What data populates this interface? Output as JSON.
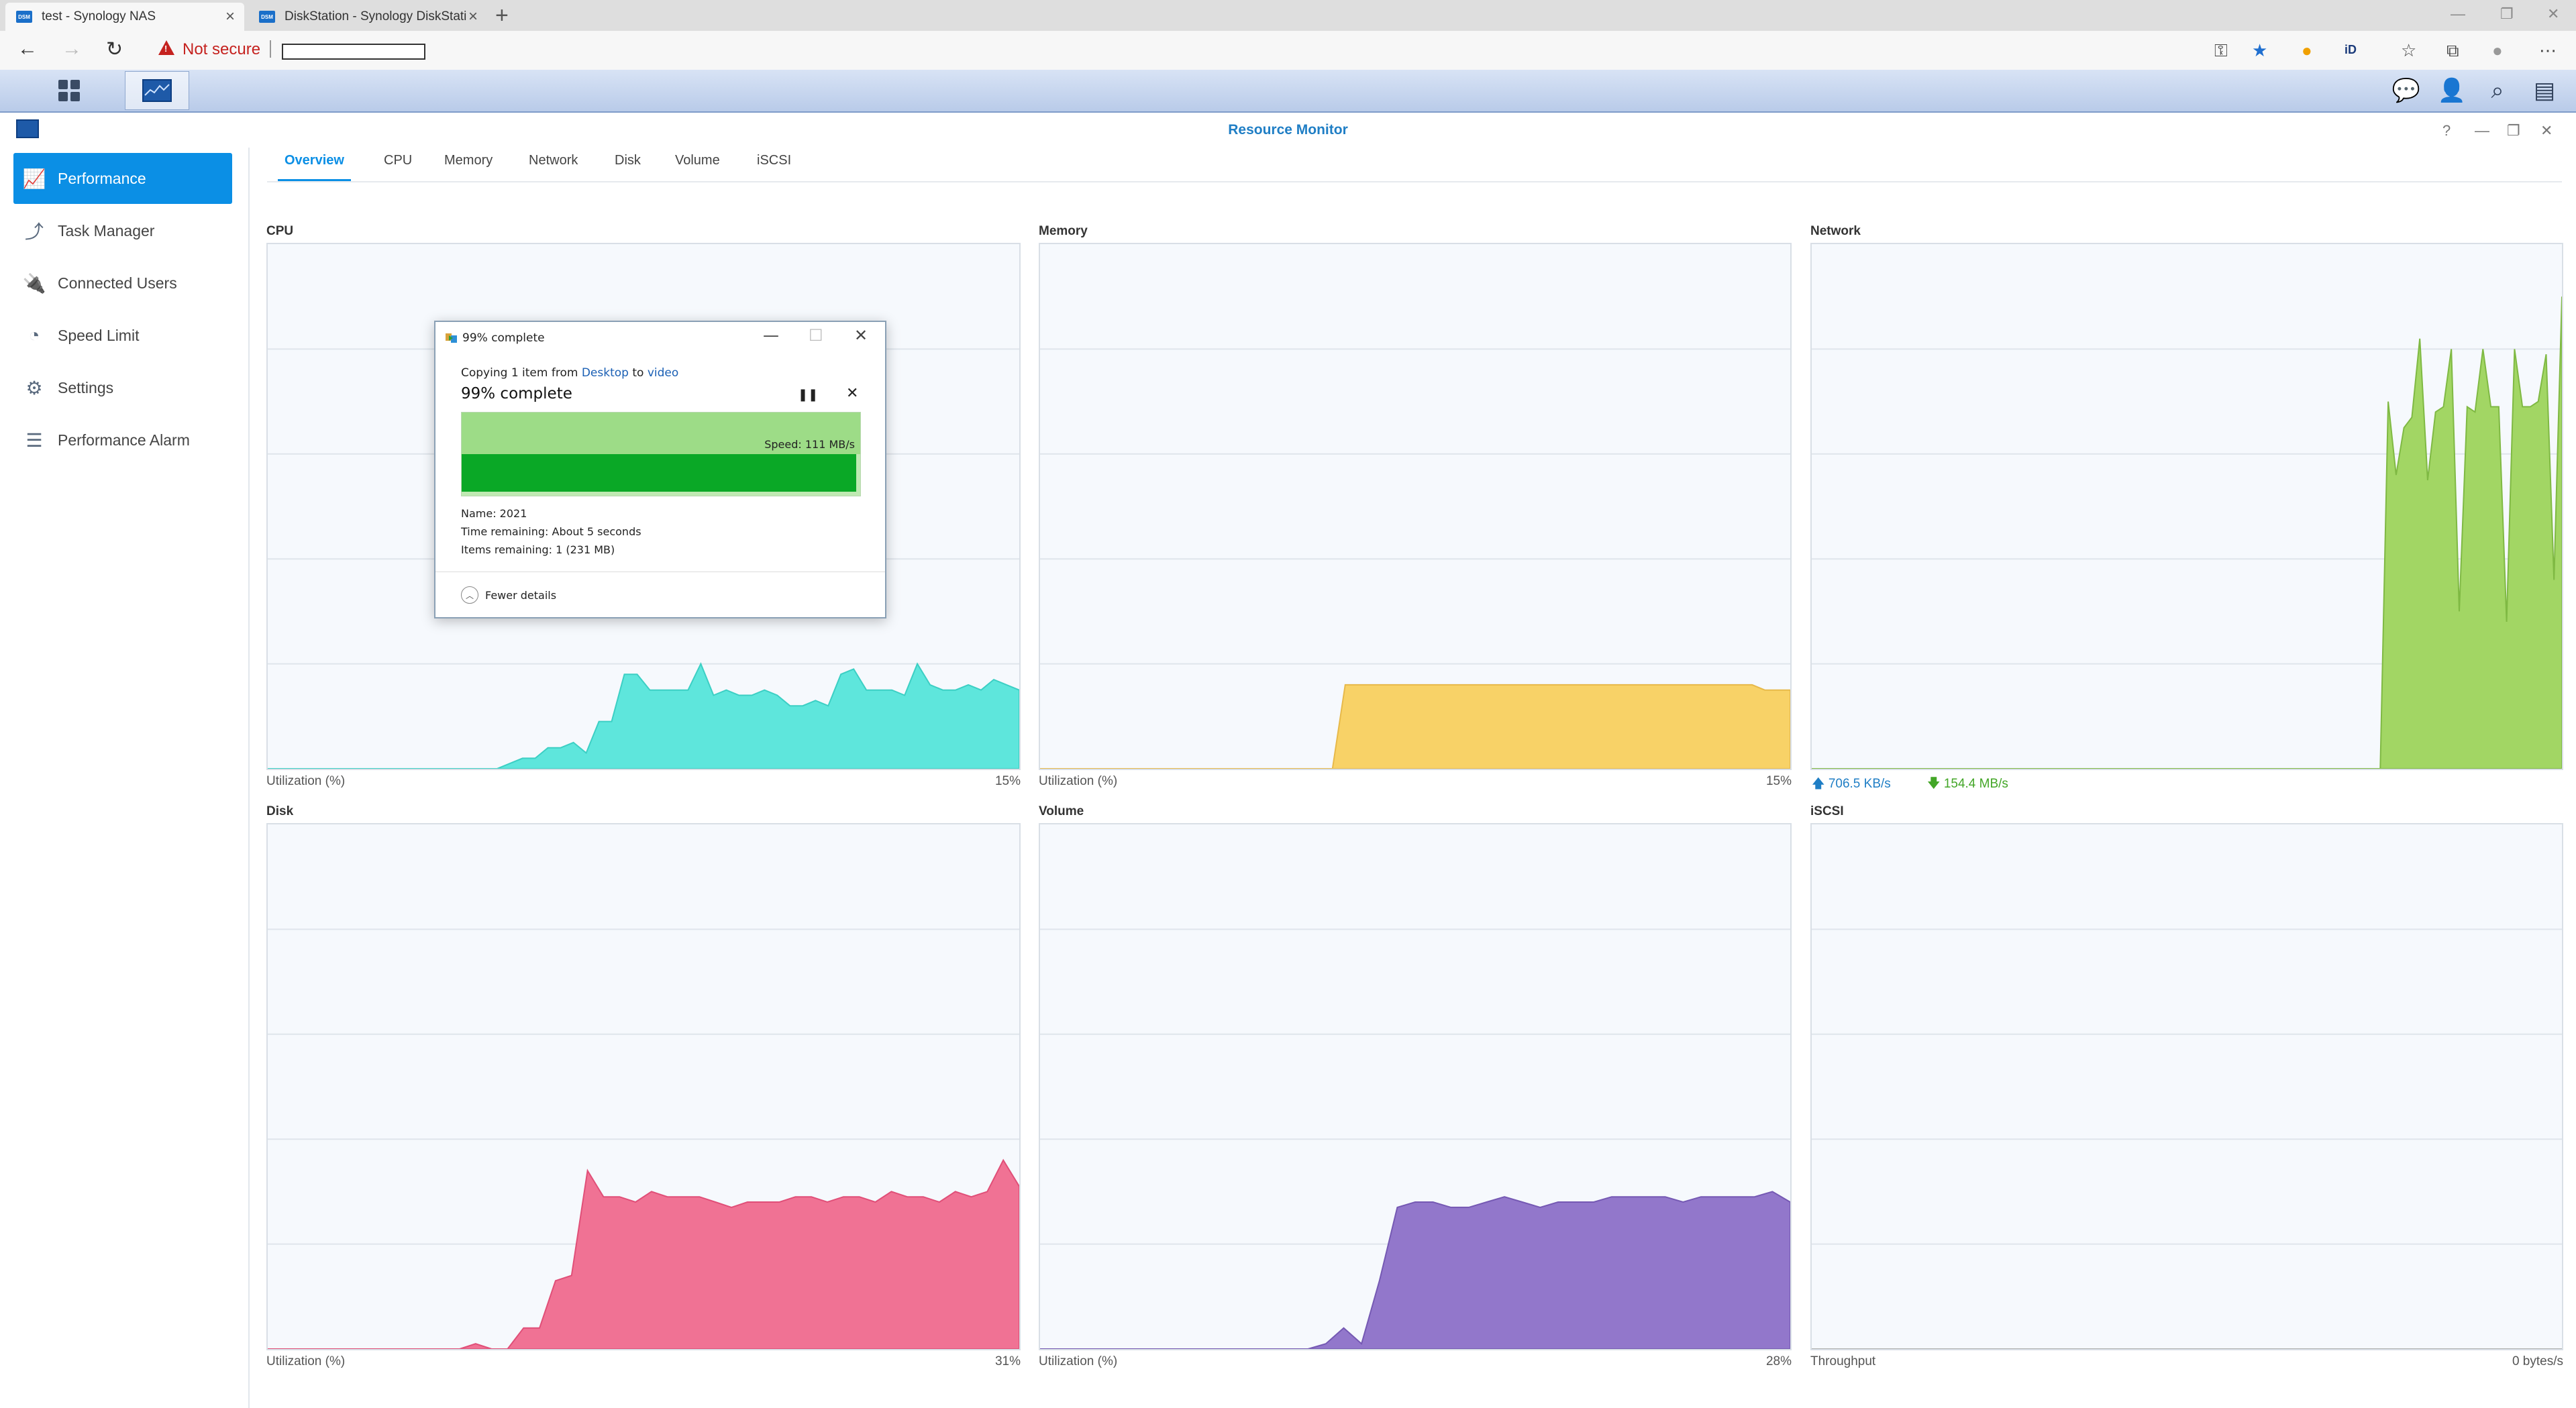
{
  "browser": {
    "tabs": [
      {
        "title": "test - Synology NAS",
        "favicon": "DSM"
      },
      {
        "title": "DiskStation - Synology DiskStati",
        "favicon": "DSM"
      }
    ],
    "security_label": "Not secure"
  },
  "window": {
    "title": "Resource Monitor"
  },
  "sidebar": {
    "items": [
      {
        "label": "Performance",
        "icon": "performance-chart-icon"
      },
      {
        "label": "Task Manager",
        "icon": "task-manager-icon"
      },
      {
        "label": "Connected Users",
        "icon": "plug-icon"
      },
      {
        "label": "Speed Limit",
        "icon": "speedometer-icon"
      },
      {
        "label": "Settings",
        "icon": "gear-icon"
      },
      {
        "label": "Performance Alarm",
        "icon": "list-icon"
      }
    ]
  },
  "tabs": [
    "Overview",
    "CPU",
    "Memory",
    "Network",
    "Disk",
    "Volume",
    "iSCSI"
  ],
  "panels": {
    "cpu": {
      "title": "CPU",
      "footer_label": "Utilization (%)",
      "value": "15%",
      "color": "#5ee6dc"
    },
    "memory": {
      "title": "Memory",
      "footer_label": "Utilization (%)",
      "value": "15%",
      "color": "#f8d267"
    },
    "network": {
      "title": "Network",
      "upload": "706.5 KB/s",
      "download": "154.4 MB/s",
      "color": "#a2d664"
    },
    "disk": {
      "title": "Disk",
      "footer_label": "Utilization (%)",
      "value": "31%",
      "color": "#f07294"
    },
    "volume": {
      "title": "Volume",
      "footer_label": "Utilization (%)",
      "value": "28%",
      "color": "#9277cb"
    },
    "iscsi": {
      "title": "iSCSI",
      "footer_label": "Throughput",
      "value": "0 bytes/s",
      "color": "#cccccc"
    }
  },
  "copy_dialog": {
    "title": "99% complete",
    "copy_prefix": "Copying 1 item from",
    "source": "Desktop",
    "to_word": "to",
    "destination": "video",
    "progress_text": "99% complete",
    "progress": 0.99,
    "speed": "Speed: 111 MB/s",
    "name": "Name:  2021",
    "time_remaining": "Time remaining:  About 5 seconds",
    "items_remaining": "Items remaining:  1 (231 MB)",
    "fewer_details": "Fewer details"
  },
  "chart_data": [
    {
      "type": "area",
      "title": "CPU",
      "ylabel": "Utilization (%)",
      "ylim": [
        0,
        100
      ],
      "values": [
        0,
        0,
        0,
        0,
        0,
        0,
        0,
        0,
        0,
        0,
        0,
        0,
        0,
        0,
        0,
        0,
        0,
        0,
        0,
        1,
        2,
        2,
        4,
        4,
        5,
        3,
        9,
        9,
        18,
        18,
        15,
        15,
        15,
        15,
        20,
        14,
        15,
        14,
        14,
        15,
        14,
        12,
        12,
        13,
        12,
        18,
        19,
        15,
        15,
        15,
        14,
        20,
        16,
        15,
        15,
        16,
        15,
        17,
        16,
        15
      ]
    },
    {
      "type": "area",
      "title": "Memory",
      "ylabel": "Utilization (%)",
      "ylim": [
        0,
        100
      ],
      "values": [
        0,
        0,
        0,
        0,
        0,
        0,
        0,
        0,
        0,
        0,
        0,
        0,
        0,
        0,
        0,
        0,
        0,
        0,
        0,
        0,
        0,
        0,
        0,
        0,
        16,
        16,
        16,
        16,
        16,
        16,
        16,
        16,
        16,
        16,
        16,
        16,
        16,
        16,
        16,
        16,
        16,
        16,
        16,
        16,
        16,
        16,
        16,
        16,
        16,
        16,
        16,
        16,
        16,
        16,
        16,
        16,
        16,
        15,
        15,
        15
      ]
    },
    {
      "type": "area",
      "title": "Network",
      "ylim": [
        0,
        100
      ],
      "values": [
        0,
        0,
        0,
        0,
        0,
        0,
        0,
        0,
        0,
        0,
        0,
        0,
        0,
        0,
        0,
        0,
        0,
        0,
        0,
        0,
        0,
        0,
        0,
        0,
        0,
        0,
        0,
        0,
        0,
        0,
        0,
        0,
        0,
        0,
        0,
        0,
        0,
        0,
        0,
        0,
        0,
        0,
        0,
        0,
        0,
        0,
        0,
        0,
        0,
        0,
        0,
        0,
        0,
        0,
        0,
        0,
        0,
        0,
        0,
        0,
        0,
        0,
        0,
        0,
        0,
        0,
        0,
        0,
        0,
        0,
        0,
        0,
        0,
        70,
        56,
        65,
        67,
        82,
        55,
        68,
        69,
        80,
        30,
        69,
        68,
        80,
        69,
        69,
        28,
        80,
        69,
        69,
        70,
        79,
        36,
        90
      ]
    },
    {
      "type": "area",
      "title": "Disk",
      "ylabel": "Utilization (%)",
      "ylim": [
        0,
        100
      ],
      "values": [
        0,
        0,
        0,
        0,
        0,
        0,
        0,
        0,
        0,
        0,
        0,
        0,
        0,
        1,
        0,
        0,
        4,
        4,
        13,
        14,
        34,
        29,
        29,
        28,
        30,
        29,
        29,
        29,
        28,
        27,
        28,
        28,
        28,
        29,
        29,
        28,
        29,
        29,
        28,
        30,
        29,
        29,
        28,
        30,
        29,
        30,
        36,
        31
      ]
    },
    {
      "type": "area",
      "title": "Volume",
      "ylabel": "Utilization (%)",
      "ylim": [
        0,
        100
      ],
      "values": [
        0,
        0,
        0,
        0,
        0,
        0,
        0,
        0,
        0,
        0,
        0,
        0,
        0,
        0,
        0,
        0,
        1,
        4,
        1,
        13,
        27,
        28,
        28,
        27,
        27,
        28,
        29,
        28,
        27,
        28,
        28,
        28,
        29,
        29,
        29,
        29,
        28,
        29,
        29,
        29,
        29,
        30,
        28
      ]
    },
    {
      "type": "area",
      "title": "iSCSI",
      "ylabel": "Throughput",
      "ylim": [
        0,
        100
      ],
      "values": [
        0,
        0,
        0,
        0,
        0,
        0,
        0,
        0,
        0,
        0
      ]
    }
  ]
}
